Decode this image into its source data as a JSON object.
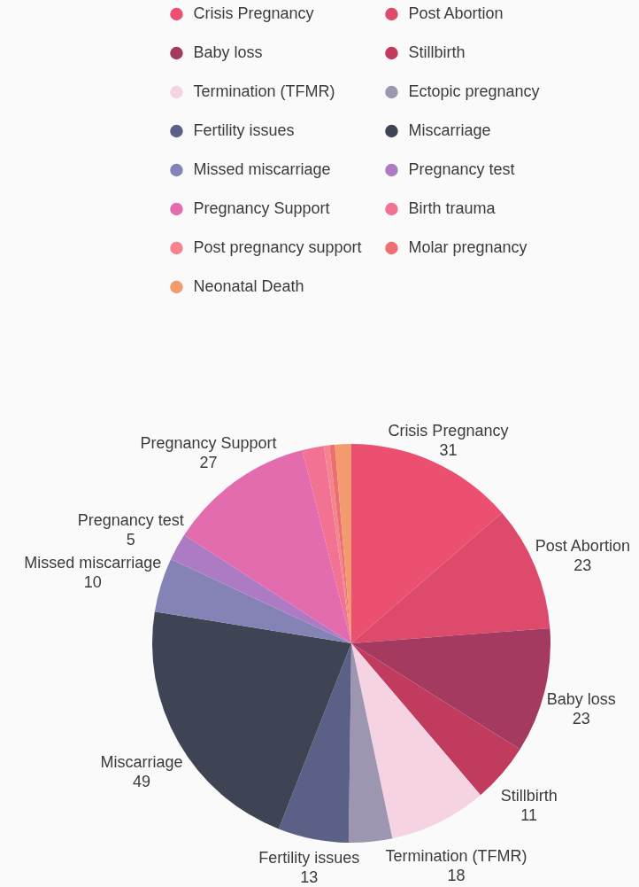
{
  "chart_data": {
    "type": "pie",
    "categories": [
      "Crisis Pregnancy",
      "Post Abortion",
      "Baby loss",
      "Stillbirth",
      "Termination (TFMR)",
      "Ectopic pregnancy",
      "Fertility issues",
      "Miscarriage",
      "Missed miscarriage",
      "Pregnancy test",
      "Pregnancy Support",
      "Birth trauma",
      "Post pregnancy support",
      "Molar pregnancy",
      "Neonatal Death"
    ],
    "values": [
      31,
      23,
      23,
      11,
      18,
      8,
      13,
      49,
      10,
      5,
      27,
      4,
      1,
      1,
      3
    ],
    "colors": [
      "#ec5070",
      "#de4a6c",
      "#a43a5f",
      "#c03b5d",
      "#f5d3e2",
      "#9c96b0",
      "#5b6087",
      "#3e4453",
      "#8583b5",
      "#ad7bc4",
      "#e36cae",
      "#f27293",
      "#f4858f",
      "#ee6f72",
      "#f39a6e"
    ],
    "value_labels": [
      "31",
      "23",
      "23",
      "11",
      "18",
      null,
      "13",
      "49",
      "10",
      "5",
      "27",
      null,
      null,
      null,
      null
    ],
    "legend": "top"
  }
}
